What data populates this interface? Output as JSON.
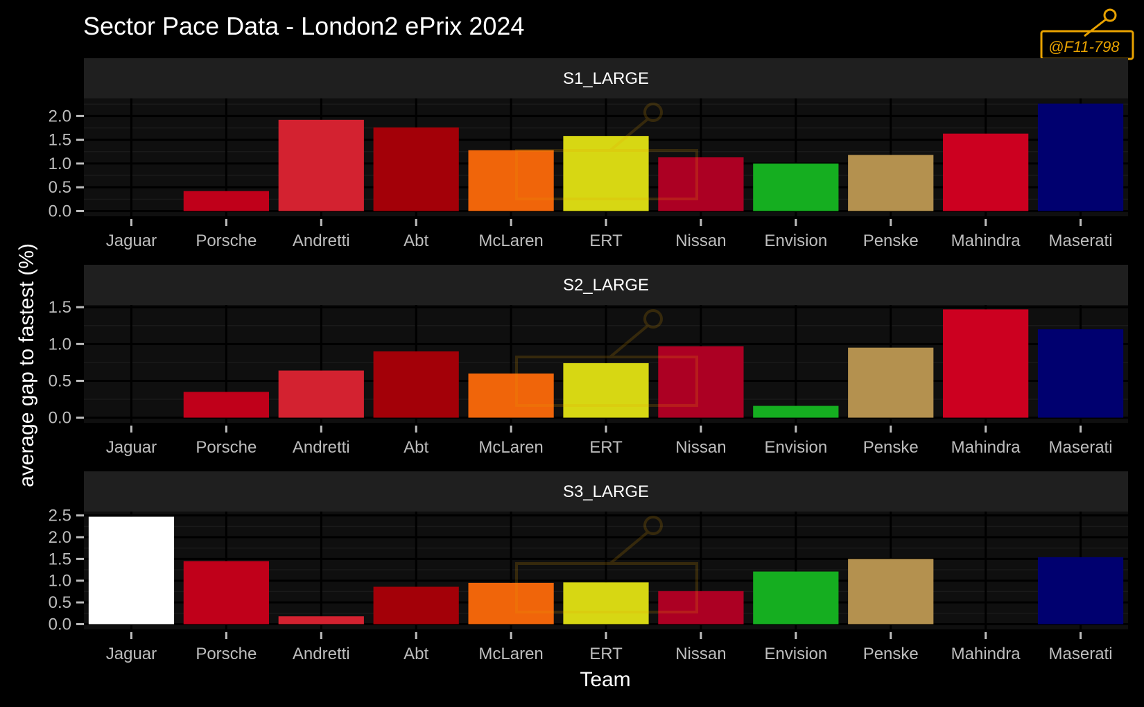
{
  "title": "Sector Pace Data - London2 ePrix 2024",
  "watermark_text": "@F11-798",
  "colors": {
    "background": "#000000",
    "panel": "#0f0f0f",
    "strip": "#1f1f1f",
    "grid_major": "#000000",
    "grid_minor": "#1a1a1a",
    "tick_text": "#bdbdbd",
    "title_text": "#ffffff",
    "watermark": "#e8a200"
  },
  "chart_data": {
    "type": "bar",
    "xlabel": "Team",
    "ylabel": "average gap to fastest (%)",
    "categories": [
      "Jaguar",
      "Porsche",
      "Andretti",
      "Abt",
      "McLaren",
      "ERT",
      "Nissan",
      "Envision",
      "Penske",
      "Mahindra",
      "Maserati"
    ],
    "bar_colors": [
      "#ffffff",
      "#c0001a",
      "#d32230",
      "#a30008",
      "#f0650a",
      "#d7d713",
      "#ac0023",
      "#15ae20",
      "#b4914f",
      "#cc0020",
      "#00006f"
    ],
    "panels": [
      {
        "strip": "S1_LARGE",
        "values": [
          0.0,
          0.42,
          1.92,
          1.76,
          1.28,
          1.58,
          1.13,
          1.0,
          1.18,
          1.63,
          2.26
        ],
        "yticks": [
          "0.0",
          "0.5",
          "1.0",
          "1.5",
          "2.0"
        ],
        "ylim": [
          -0.11,
          2.37
        ]
      },
      {
        "strip": "S2_LARGE",
        "values": [
          0.0,
          0.35,
          0.64,
          0.9,
          0.6,
          0.74,
          0.97,
          0.16,
          0.95,
          1.47,
          1.2
        ],
        "yticks": [
          "0.0",
          "0.5",
          "1.0",
          "1.5"
        ],
        "ylim": [
          -0.07,
          1.53
        ]
      },
      {
        "strip": "S3_LARGE",
        "values": [
          2.47,
          1.45,
          0.18,
          0.86,
          0.95,
          0.96,
          0.76,
          1.21,
          1.5,
          0.0,
          1.54
        ],
        "yticks": [
          "0.0",
          "0.5",
          "1.0",
          "1.5",
          "2.0",
          "2.5"
        ],
        "ylim": [
          -0.12,
          2.59
        ]
      }
    ]
  }
}
